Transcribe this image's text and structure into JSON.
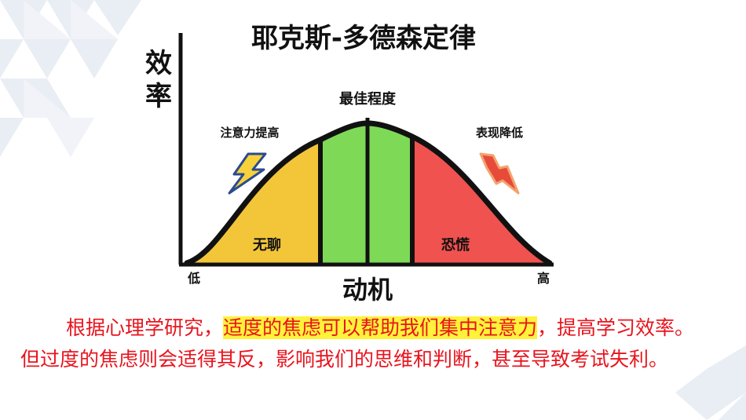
{
  "title": "耶克斯-多德森定律",
  "y_axis_label": "效率",
  "x_axis_label": "动机",
  "x_low": "低",
  "x_high": "高",
  "peak_label": "最佳程度",
  "rise_label": "注意力提高",
  "fall_label": "表现降低",
  "zones": [
    {
      "label": "无聊",
      "color": "#f3c63a"
    },
    {
      "label": "",
      "color": "#7ed957"
    },
    {
      "label": "恐慌",
      "color": "#f0524f"
    }
  ],
  "paragraph": {
    "part1": "根据心理学研究，",
    "highlight": "适度的焦虑可以帮助我们集中注意力",
    "part2": "，提高学习效率。但过度的焦虑则会适得其反，影响我们的思维和判断，甚至导致考试失利。"
  },
  "colors": {
    "text_red": "#e8141e",
    "highlight": "#fff23a"
  }
}
